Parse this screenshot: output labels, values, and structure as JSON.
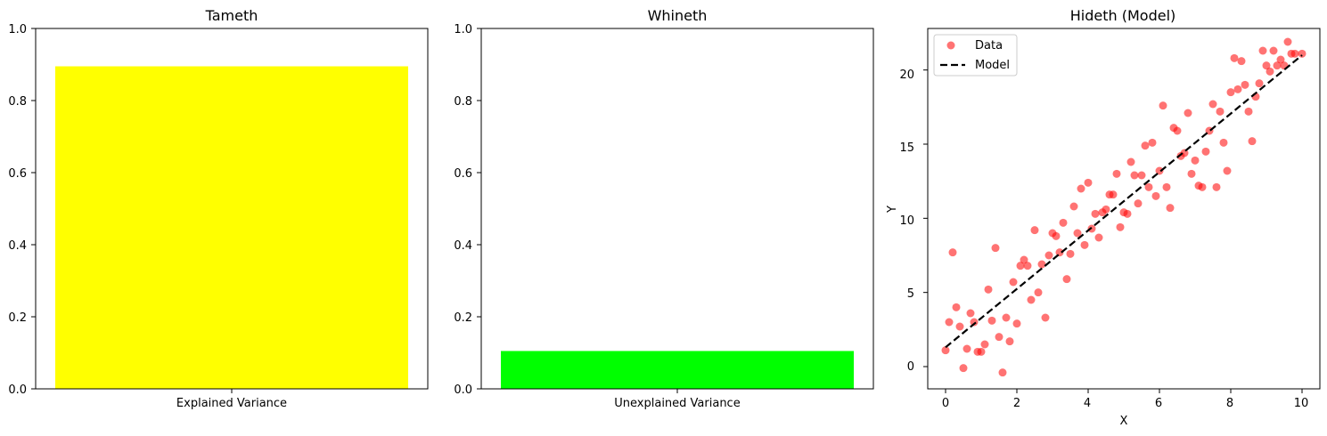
{
  "chart_data": [
    {
      "type": "bar",
      "title": "Tameth",
      "categories": [
        "Explained Variance"
      ],
      "values": [
        0.895
      ],
      "color": "#ffff00",
      "xlabel": "",
      "ylabel": "",
      "ylim": [
        0,
        1.0
      ],
      "yticks": [
        "0.0",
        "0.2",
        "0.4",
        "0.6",
        "0.8",
        "1.0"
      ],
      "grid": false
    },
    {
      "type": "bar",
      "title": "Whineth",
      "categories": [
        "Unexplained Variance"
      ],
      "values": [
        0.105
      ],
      "color": "#00ff00",
      "xlabel": "",
      "ylabel": "",
      "ylim": [
        0,
        1.0
      ],
      "yticks": [
        "0.0",
        "0.2",
        "0.4",
        "0.6",
        "0.8",
        "1.0"
      ],
      "grid": false
    },
    {
      "type": "scatter",
      "title": "Hideth (Model)",
      "xlabel": "X",
      "ylabel": "Y",
      "xlim": [
        -0.5,
        10.5
      ],
      "ylim": [
        -1.5,
        22.8
      ],
      "xticks": [
        "0",
        "2",
        "4",
        "6",
        "8",
        "10"
      ],
      "yticks": [
        "0",
        "5",
        "10",
        "15",
        "20"
      ],
      "grid": false,
      "legend": {
        "placement": "top-left",
        "entries": [
          "Data",
          "Model"
        ]
      },
      "series": [
        {
          "name": "Data",
          "kind": "scatter",
          "color": "#ff0000",
          "alpha": 0.55,
          "points": [
            [
              0.0,
              1.1
            ],
            [
              0.1,
              3.0
            ],
            [
              0.2,
              7.7
            ],
            [
              0.3,
              4.0
            ],
            [
              0.4,
              2.7
            ],
            [
              0.5,
              -0.1
            ],
            [
              0.6,
              1.2
            ],
            [
              0.7,
              3.6
            ],
            [
              0.8,
              3.0
            ],
            [
              0.9,
              1.0
            ],
            [
              1.0,
              1.0
            ],
            [
              1.1,
              1.5
            ],
            [
              1.2,
              5.2
            ],
            [
              1.3,
              3.1
            ],
            [
              1.4,
              8.0
            ],
            [
              1.5,
              2.0
            ],
            [
              1.6,
              -0.4
            ],
            [
              1.7,
              3.3
            ],
            [
              1.8,
              1.7
            ],
            [
              1.9,
              5.7
            ],
            [
              2.0,
              2.9
            ],
            [
              2.1,
              6.8
            ],
            [
              2.2,
              7.2
            ],
            [
              2.3,
              6.8
            ],
            [
              2.4,
              4.5
            ],
            [
              2.5,
              9.2
            ],
            [
              2.6,
              5.0
            ],
            [
              2.7,
              6.9
            ],
            [
              2.8,
              3.3
            ],
            [
              2.9,
              7.5
            ],
            [
              3.0,
              9.0
            ],
            [
              3.1,
              8.8
            ],
            [
              3.2,
              7.7
            ],
            [
              3.3,
              9.7
            ],
            [
              3.4,
              5.9
            ],
            [
              3.5,
              7.6
            ],
            [
              3.6,
              10.8
            ],
            [
              3.7,
              9.0
            ],
            [
              3.8,
              12.0
            ],
            [
              3.9,
              8.2
            ],
            [
              4.0,
              12.4
            ],
            [
              4.1,
              9.3
            ],
            [
              4.2,
              10.3
            ],
            [
              4.3,
              8.7
            ],
            [
              4.4,
              10.4
            ],
            [
              4.5,
              10.6
            ],
            [
              4.6,
              11.6
            ],
            [
              4.7,
              11.6
            ],
            [
              4.8,
              13.0
            ],
            [
              4.9,
              9.4
            ],
            [
              5.0,
              10.4
            ],
            [
              5.1,
              10.3
            ],
            [
              5.2,
              13.8
            ],
            [
              5.3,
              12.9
            ],
            [
              5.4,
              11.0
            ],
            [
              5.5,
              12.9
            ],
            [
              5.6,
              14.9
            ],
            [
              5.7,
              12.1
            ],
            [
              5.8,
              15.1
            ],
            [
              5.9,
              11.5
            ],
            [
              6.0,
              13.2
            ],
            [
              6.1,
              17.6
            ],
            [
              6.2,
              12.1
            ],
            [
              6.3,
              10.7
            ],
            [
              6.4,
              16.1
            ],
            [
              6.5,
              15.9
            ],
            [
              6.6,
              14.2
            ],
            [
              6.7,
              14.4
            ],
            [
              6.8,
              17.1
            ],
            [
              6.9,
              13.0
            ],
            [
              7.0,
              13.9
            ],
            [
              7.1,
              12.2
            ],
            [
              7.2,
              12.1
            ],
            [
              7.3,
              14.5
            ],
            [
              7.4,
              15.9
            ],
            [
              7.5,
              17.7
            ],
            [
              7.6,
              12.1
            ],
            [
              7.7,
              17.2
            ],
            [
              7.8,
              15.1
            ],
            [
              7.9,
              13.2
            ],
            [
              8.0,
              18.5
            ],
            [
              8.1,
              20.8
            ],
            [
              8.2,
              18.7
            ],
            [
              8.3,
              20.6
            ],
            [
              8.4,
              19.0
            ],
            [
              8.5,
              17.2
            ],
            [
              8.6,
              15.2
            ],
            [
              8.7,
              18.2
            ],
            [
              8.8,
              19.1
            ],
            [
              8.9,
              21.3
            ],
            [
              9.0,
              20.3
            ],
            [
              9.1,
              19.9
            ],
            [
              9.2,
              21.3
            ],
            [
              9.3,
              20.3
            ],
            [
              9.4,
              20.7
            ],
            [
              9.5,
              20.3
            ],
            [
              9.6,
              21.9
            ],
            [
              9.7,
              21.1
            ],
            [
              9.8,
              21.1
            ],
            [
              10.0,
              21.1
            ]
          ]
        },
        {
          "name": "Model",
          "kind": "line",
          "style": "dashed",
          "color": "#000000",
          "points": [
            [
              0.0,
              1.3
            ],
            [
              10.0,
              21.0
            ]
          ]
        }
      ]
    }
  ]
}
